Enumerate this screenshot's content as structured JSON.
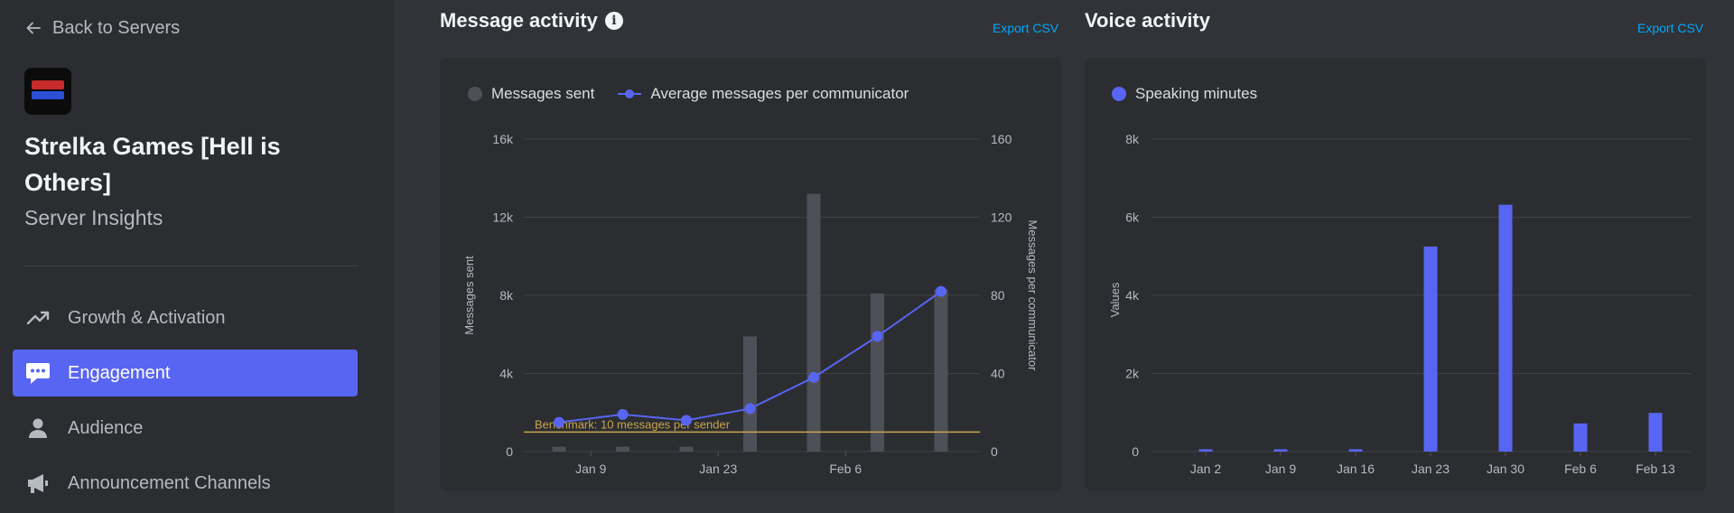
{
  "sidebar": {
    "back_label": "Back to Servers",
    "server_name": "Strelka Games [Hell is Others]",
    "server_subtitle": "Server Insights",
    "nav": [
      {
        "label": "Growth & Activation",
        "icon": "trending-up-icon"
      },
      {
        "label": "Engagement",
        "icon": "chat-bubble-icon",
        "active": true
      },
      {
        "label": "Audience",
        "icon": "person-icon"
      },
      {
        "label": "Announcement Channels",
        "icon": "megaphone-icon"
      }
    ]
  },
  "message_panel": {
    "title": "Message activity",
    "info_icon": "info-icon",
    "export_label": "Export CSV",
    "legend": {
      "bars": "Messages sent",
      "line": "Average messages per communicator"
    }
  },
  "voice_panel": {
    "title": "Voice activity",
    "export_label": "Export CSV",
    "legend": {
      "bars": "Speaking minutes"
    }
  },
  "colors": {
    "accent": "#5865f2",
    "bar_gray": "#4e5058",
    "benchmark": "#c9a44a",
    "link": "#00a8fc"
  },
  "chart_data": [
    {
      "type": "bar",
      "title": "Message activity",
      "x_tick_labels": [
        "Jan 9",
        "Jan 23",
        "Feb 6"
      ],
      "x_tick_after_bar": [
        1,
        3,
        5
      ],
      "series": [
        {
          "name": "Messages sent",
          "type": "bar",
          "axis": "left",
          "values": [
            250,
            250,
            250,
            5900,
            13200,
            8100,
            8300
          ]
        },
        {
          "name": "Average messages per communicator",
          "type": "line",
          "axis": "right",
          "values": [
            15,
            19,
            16,
            22,
            38,
            59,
            82
          ]
        }
      ],
      "ylabel": "Messages sent",
      "y2label": "Messages per communicator",
      "ylim": [
        0,
        16000
      ],
      "y2lim": [
        0,
        160
      ],
      "yticks": [
        "0",
        "4k",
        "8k",
        "12k",
        "16k"
      ],
      "y2ticks": [
        "0",
        "40",
        "80",
        "120",
        "160"
      ],
      "benchmark": {
        "label": "Benchmark: 10 messages per sender",
        "value": 10
      },
      "grid": true,
      "legend": "top-left"
    },
    {
      "type": "bar",
      "title": "Voice activity",
      "categories": [
        "Jan 2",
        "Jan 9",
        "Jan 16",
        "Jan 23",
        "Jan 30",
        "Feb 6",
        "Feb 13"
      ],
      "series": [
        {
          "name": "Speaking minutes",
          "values": [
            60,
            60,
            60,
            5250,
            6320,
            720,
            990
          ]
        }
      ],
      "ylabel": "Values",
      "ylim": [
        0,
        8000
      ],
      "yticks": [
        "0",
        "2k",
        "4k",
        "6k",
        "8k"
      ],
      "grid": true,
      "legend": "top-left"
    }
  ]
}
